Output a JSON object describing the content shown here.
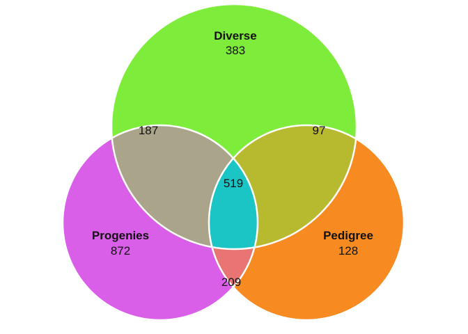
{
  "sets": {
    "diverse": {
      "label": "Diverse",
      "only": "383",
      "color": "#7dec3a"
    },
    "progenies": {
      "label": "Progenies",
      "only": "872",
      "color": "#d95ee8"
    },
    "pedigree": {
      "label": "Pedigree",
      "only": "128",
      "color": "#f78b21"
    }
  },
  "intersections": {
    "diverse_progenies": {
      "value": "187",
      "color": "#aaa48b"
    },
    "diverse_pedigree": {
      "value": "97",
      "color": "#b7ba2e"
    },
    "progenies_pedigree": {
      "value": "209",
      "color": "#e87474"
    },
    "all": {
      "value": "519",
      "color": "#1bc5c5"
    }
  },
  "outline_color": "#ffffff"
}
